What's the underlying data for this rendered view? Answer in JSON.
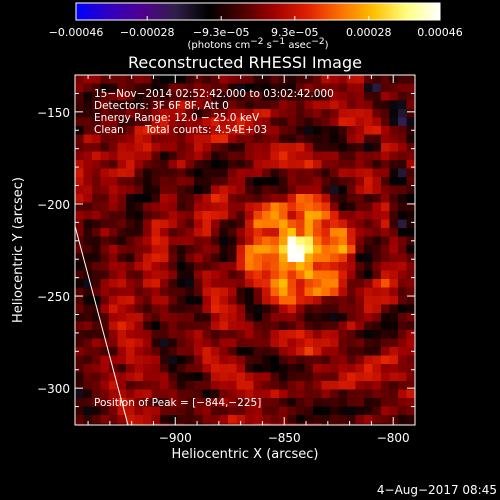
{
  "chart_data": {
    "type": "heatmap",
    "title": "Reconstructed RHESSI Image",
    "xlabel": "Heliocentric X (arcsec)",
    "ylabel": "Heliocentric Y (arcsec)",
    "xlim": [
      -946,
      -790
    ],
    "ylim": [
      -320,
      -130
    ],
    "xticks": [
      -900,
      -850,
      -800
    ],
    "yticks": [
      -150,
      -200,
      -250,
      -300
    ],
    "xtick_labels": [
      "−900",
      "−850",
      "−800"
    ],
    "ytick_labels": [
      "−150",
      "−200",
      "−250",
      "−300"
    ],
    "peak": {
      "x": -844,
      "y": -225
    },
    "colormap": [
      "#0000ff",
      "#3000c0",
      "#500090",
      "#302048",
      "#000000",
      "#4a0000",
      "#a00000",
      "#e02000",
      "#ff7000",
      "#ffc000",
      "#ffff80",
      "#ffffff"
    ],
    "colorbar": {
      "range": [
        -0.00046,
        0.00046
      ],
      "tick_values": [
        -0.00046,
        -0.00028,
        -9.3e-05,
        9.3e-05,
        0.00028,
        0.00046
      ],
      "tick_labels": [
        "−0.00046",
        "−0.00028",
        "−9.3e−05",
        "9.3e−05",
        "0.00028",
        "0.00046"
      ],
      "units": {
        "prefix": "(photons cm",
        "exp1": "−2",
        "mid": " s",
        "exp2": "−1",
        "mid2": " asec",
        "exp3": "−2",
        "suffix": ")"
      }
    },
    "annotations": {
      "time_range": "15−Nov−2014 02:52:42.000 to 03:02:42.000",
      "detectors": "Detectors: 3F 6F 8F, Att 0",
      "energy": "Energy Range: 12.0 − 25.0 keV",
      "clean": "Clean",
      "counts": "Total counts: 4.54E+03",
      "peak_label": "Position of Peak = [−844,−225]"
    },
    "limb_color": "#ffffff"
  },
  "footer": {
    "timestamp": "4−Aug−2017 08:45"
  }
}
